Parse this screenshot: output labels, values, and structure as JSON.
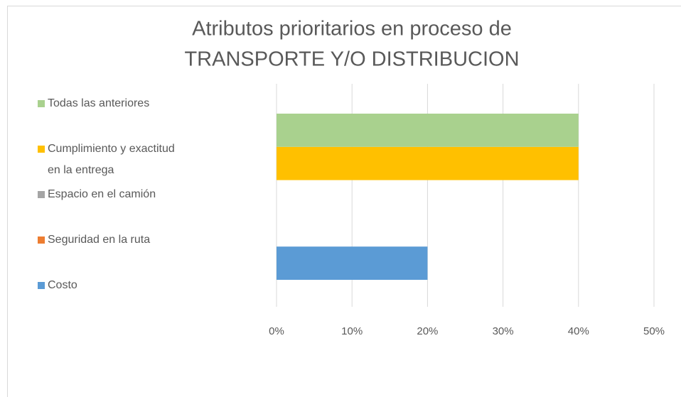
{
  "chart_data": {
    "type": "bar",
    "orientation": "horizontal",
    "title": [
      "Atributos prioritarios en proceso de",
      "TRANSPORTE Y/O DISTRIBUCION"
    ],
    "categories": [
      null
    ],
    "series": [
      {
        "name": "Costo",
        "color": "#5b9bd5",
        "values": [
          20
        ]
      },
      {
        "name": "Seguridad en la ruta",
        "color": "#ed7d31",
        "values": [
          0
        ]
      },
      {
        "name": "Espacio en el camión",
        "color": "#a5a5a5",
        "values": [
          0
        ]
      },
      {
        "name": "Cumplimiento y exactitud en la entrega",
        "color": "#ffc000",
        "values": [
          40
        ]
      },
      {
        "name": "Todas las anteriores",
        "color": "#a9d18e",
        "values": [
          40
        ]
      }
    ],
    "xlim": [
      0,
      50
    ],
    "xticks": [
      {
        "value": 0,
        "label": "0%"
      },
      {
        "value": 10,
        "label": "10%"
      },
      {
        "value": 20,
        "label": "20%"
      },
      {
        "value": 30,
        "label": "30%"
      },
      {
        "value": 40,
        "label": "40%"
      },
      {
        "value": 50,
        "label": "50%"
      }
    ],
    "grid": true,
    "legend": "left"
  }
}
